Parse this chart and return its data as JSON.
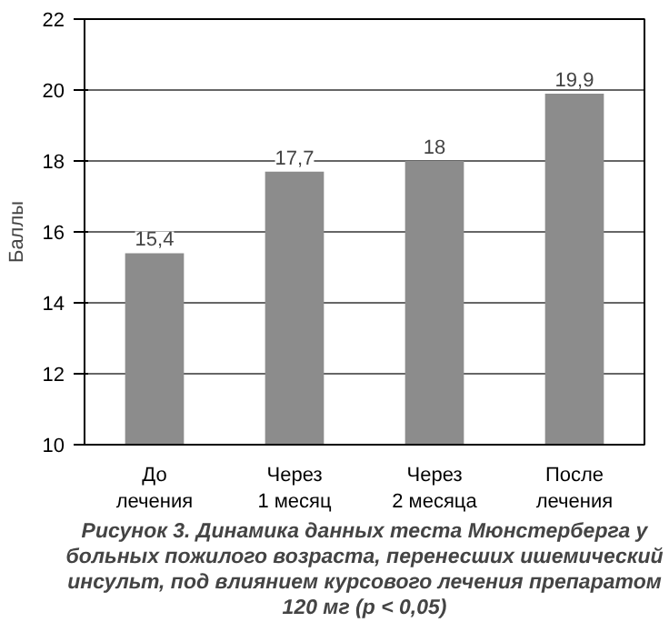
{
  "chart_data": {
    "type": "bar",
    "title": "Рисунок 3. Динамика данных теста Мюнстерберга у больных пожилого возраста, перенесших ишемический инсульт, под влиянием курсового лечения препаратом 120 мг (p < 0,05)",
    "ylabel": "Баллы",
    "categories": [
      "До лечения",
      "Через 1 месяц",
      "Через 2 месяца",
      "После лечения"
    ],
    "values": [
      15.4,
      17.7,
      18,
      19.9
    ],
    "value_labels": [
      "15,4",
      "17,7",
      "18",
      "19,9"
    ],
    "color": "#8c8c8c",
    "ylim": [
      10,
      22
    ],
    "yticks": [
      10,
      12,
      14,
      16,
      18,
      20,
      22
    ],
    "grid": "y"
  }
}
